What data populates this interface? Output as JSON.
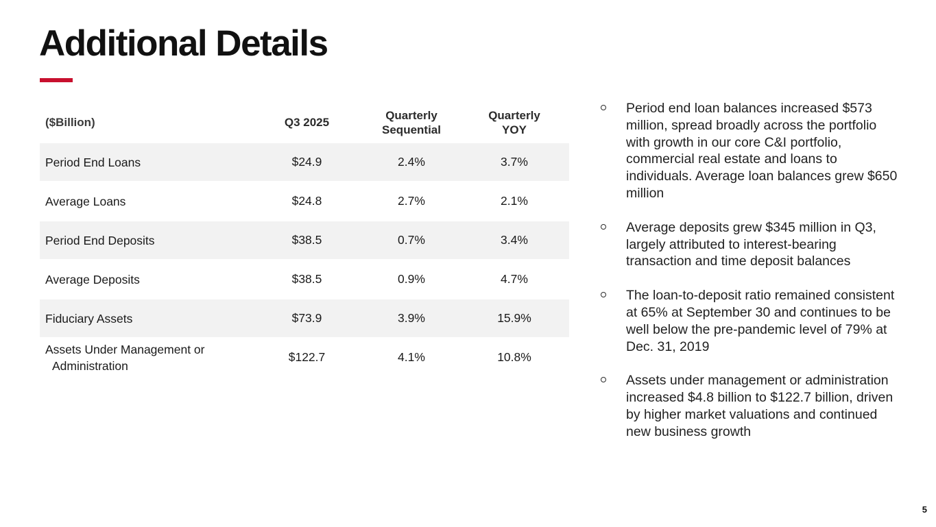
{
  "slide": {
    "title": "Additional Details",
    "page_number": "5",
    "accent_color": "#c8102e",
    "row_stripe_color": "#f2f2f2"
  },
  "table": {
    "unit_label": "($Billion)",
    "headers": [
      "Q3 2025",
      "Quarterly Sequential",
      "Quarterly YOY"
    ],
    "rows": [
      {
        "label": "Period End Loans",
        "q3_2025": "$24.9",
        "quarterly_sequential": "2.4%",
        "quarterly_yoy": "3.7%"
      },
      {
        "label": "Average Loans",
        "q3_2025": "$24.8",
        "quarterly_sequential": "2.7%",
        "quarterly_yoy": "2.1%"
      },
      {
        "label": "Period End Deposits",
        "q3_2025": "$38.5",
        "quarterly_sequential": "0.7%",
        "quarterly_yoy": "3.4%"
      },
      {
        "label": "Average Deposits",
        "q3_2025": "$38.5",
        "quarterly_sequential": "0.9%",
        "quarterly_yoy": "4.7%"
      },
      {
        "label": "Fiduciary Assets",
        "q3_2025": "$73.9",
        "quarterly_sequential": "3.9%",
        "quarterly_yoy": "15.9%"
      },
      {
        "label": "Assets Under Management or Administration",
        "q3_2025": "$122.7",
        "quarterly_sequential": "4.1%",
        "quarterly_yoy": "10.8%"
      }
    ]
  },
  "bullets": [
    "Period end loan balances increased $573 million, spread broadly across the portfolio with growth in our core C&I portfolio, commercial real estate and loans to individuals. Average loan balances grew $650 million",
    "Average deposits grew $345 million in Q3, largely attributed to interest-bearing transaction and time deposit balances",
    "The loan-to-deposit ratio remained consistent at 65% at September 30 and continues to be well below the pre-pandemic level of 79% at Dec. 31, 2019",
    "Assets under management or administration increased $4.8 billion to $122.7 billion, driven by higher market valuations and continued new business growth"
  ]
}
